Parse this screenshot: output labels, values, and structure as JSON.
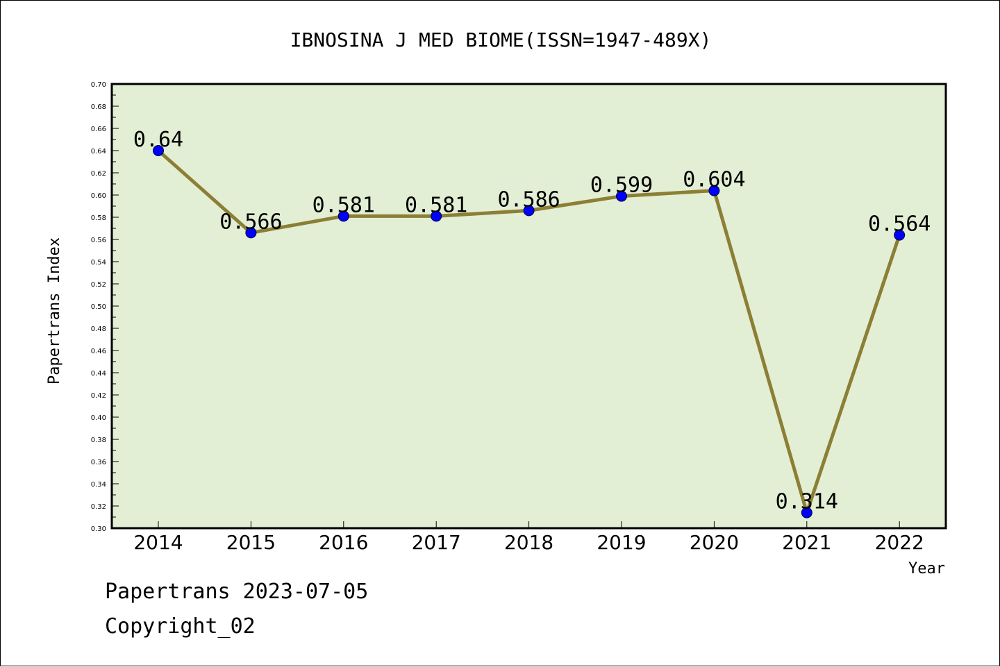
{
  "chart_data": {
    "type": "line",
    "title": "IBNOSINA J MED BIOME(ISSN=1947-489X)",
    "xlabel": "Year",
    "ylabel": "Papertrans Index",
    "categories": [
      "2014",
      "2015",
      "2016",
      "2017",
      "2018",
      "2019",
      "2020",
      "2021",
      "2022"
    ],
    "values": [
      0.64,
      0.566,
      0.581,
      0.581,
      0.586,
      0.599,
      0.604,
      0.314,
      0.564
    ],
    "data_labels": [
      "0.64",
      "0.566",
      "0.581",
      "0.581",
      "0.586",
      "0.599",
      "0.604",
      "0.314",
      "0.564"
    ],
    "ylim": [
      0.3,
      0.7
    ],
    "yticks": [
      "0.30",
      "0.32",
      "0.34",
      "0.36",
      "0.38",
      "0.40",
      "0.42",
      "0.44",
      "0.46",
      "0.48",
      "0.50",
      "0.52",
      "0.54",
      "0.56",
      "0.58",
      "0.60",
      "0.62",
      "0.64",
      "0.66",
      "0.68",
      "0.70"
    ],
    "grid": false,
    "colors": {
      "plot_background": "#e2efd5",
      "line": "#8c7f35",
      "marker": "#0000ff"
    }
  },
  "footer": {
    "line1": "Papertrans 2023-07-05",
    "line2": "Copyright_02"
  }
}
